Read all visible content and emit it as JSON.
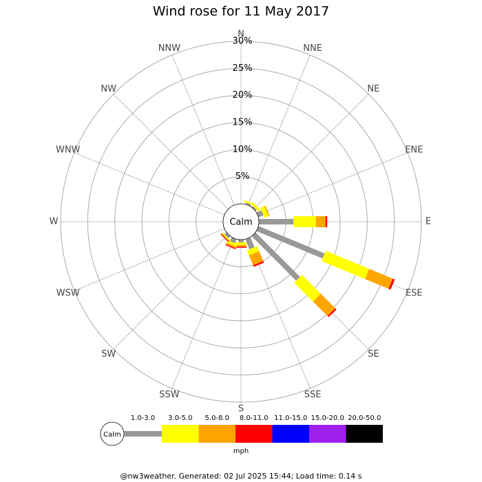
{
  "chart_data": {
    "type": "windrose",
    "title": "Wind rose for 11 May 2017",
    "categories": [
      "N",
      "NNE",
      "NE",
      "ENE",
      "E",
      "ESE",
      "SE",
      "SSE",
      "S",
      "SSW",
      "SW",
      "WSW",
      "W",
      "WNW",
      "NW",
      "NNW"
    ],
    "ylim": [
      0,
      30
    ],
    "yticks": [
      {
        "value": 5,
        "label": "5%"
      },
      {
        "value": 10,
        "label": "10%"
      },
      {
        "value": 15,
        "label": "15%"
      },
      {
        "value": 20,
        "label": "20%"
      },
      {
        "value": 25,
        "label": "25%"
      },
      {
        "value": 30,
        "label": "30%"
      }
    ],
    "grid": true,
    "calm_label": "Calm",
    "units": "mph",
    "footer": "@nw3weather. Generated: 02 Jul 2025 15:44; Load time: 0.14 s",
    "series": [
      {
        "name": "1.0-3.0",
        "color": "#999999",
        "values": [
          0,
          0.3,
          0.3,
          1.0,
          6.4,
          13.2,
          11.6,
          2.0,
          0.5,
          0.8,
          0.5,
          0,
          0,
          0,
          0,
          0
        ]
      },
      {
        "name": "3.0-5.0",
        "color": "#ffff00",
        "values": [
          0,
          0.3,
          0.5,
          0.8,
          4.1,
          8.7,
          4.9,
          1.0,
          0.5,
          0.5,
          0.3,
          0,
          0,
          0,
          0,
          0
        ]
      },
      {
        "name": "5.0-8.0",
        "color": "#ffa500",
        "values": [
          0,
          0,
          0,
          0.2,
          1.8,
          4.7,
          3.8,
          2.0,
          0.3,
          0.3,
          0,
          0,
          0,
          0,
          0,
          0
        ]
      },
      {
        "name": "8.0-11.0",
        "color": "#ff0000",
        "values": [
          0,
          0,
          0,
          0,
          0.3,
          0.4,
          0.3,
          0.3,
          0.2,
          0.2,
          0.2,
          0,
          0,
          0,
          0,
          0
        ]
      },
      {
        "name": "11.0-15.0",
        "color": "#0000ff",
        "values": [
          0,
          0,
          0,
          0,
          0,
          0,
          0,
          0,
          0,
          0,
          0,
          0,
          0,
          0,
          0,
          0
        ]
      },
      {
        "name": "15.0-20.0",
        "color": "#a020f0",
        "values": [
          0,
          0,
          0,
          0,
          0,
          0,
          0,
          0,
          0,
          0,
          0,
          0,
          0,
          0,
          0,
          0
        ]
      },
      {
        "name": "20.0-50.0",
        "color": "#000000",
        "values": [
          0,
          0,
          0,
          0,
          0,
          0,
          0,
          0,
          0,
          0,
          0,
          0,
          0,
          0,
          0,
          0
        ]
      }
    ]
  }
}
